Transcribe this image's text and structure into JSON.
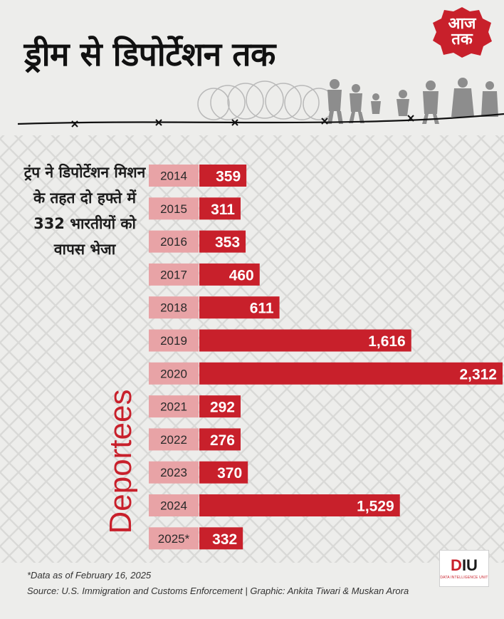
{
  "header": {
    "title": "ड्रीम से डिपोर्टेशन तक",
    "logo": {
      "line1": "आज",
      "line2": "तक",
      "color": "#c8202b"
    }
  },
  "side_note": "ट्रंप ने डिपोर्टेशन मिशन के तहत दो हफ्ते में 332 भारतीयों को वापस भेजा",
  "footer": {
    "footnote": "*Data as of February 16, 2025",
    "source": "Source: U.S. Immigration and Customs Enforcement | Graphic: Ankita Tiwari & Muskan Arora",
    "badge": {
      "mark_red": "D",
      "mark_rest": "IU",
      "sub": "DATA INTELLIGENCE UNIT"
    }
  },
  "colors": {
    "bar": "#c8202b",
    "label_box": "#e8a3a6",
    "background": "#ededeb"
  },
  "chart_data": {
    "type": "bar",
    "orientation": "horizontal",
    "ylabel": "Deportees",
    "categories": [
      "2014",
      "2015",
      "2016",
      "2017",
      "2018",
      "2019",
      "2020",
      "2021",
      "2022",
      "2023",
      "2024",
      "2025*"
    ],
    "values": [
      359,
      311,
      353,
      460,
      611,
      1616,
      2312,
      292,
      276,
      370,
      1529,
      332
    ],
    "value_labels": [
      "359",
      "311",
      "353",
      "460",
      "611",
      "1,616",
      "2,312",
      "292",
      "276",
      "370",
      "1,529",
      "332"
    ],
    "legend": "none",
    "grid": false
  }
}
